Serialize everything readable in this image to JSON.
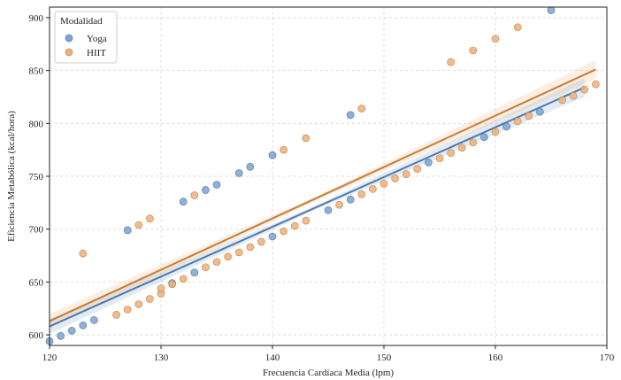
{
  "chart_data": {
    "type": "scatter",
    "title": "",
    "xlabel": "Frecuencia Cardíaca Media (lpm)",
    "ylabel": "Eficiencia Metabólica (kcal/hora)",
    "xlim": [
      120,
      170
    ],
    "ylim": [
      590,
      910
    ],
    "x_ticks": [
      "120",
      "130",
      "140",
      "150",
      "160",
      "170"
    ],
    "y_ticks": [
      "600",
      "650",
      "700",
      "750",
      "800",
      "850",
      "900"
    ],
    "grid": true,
    "legend": {
      "title": "Modalidad",
      "position": "top-left"
    },
    "series": [
      {
        "name": "Yoga",
        "color": "#7ba3cf",
        "edge": "#5b7fa8",
        "trend_color": "#4c79ad",
        "trend": [
          [
            120,
            608
          ],
          [
            168,
            834
          ]
        ],
        "points": [
          [
            120,
            594
          ],
          [
            121,
            599
          ],
          [
            122,
            604
          ],
          [
            123,
            609
          ],
          [
            124,
            614
          ],
          [
            127,
            699
          ],
          [
            131,
            649
          ],
          [
            132,
            726
          ],
          [
            133,
            659
          ],
          [
            134,
            737
          ],
          [
            135,
            742
          ],
          [
            137,
            753
          ],
          [
            138,
            759
          ],
          [
            140,
            770
          ],
          [
            140,
            693
          ],
          [
            145,
            718
          ],
          [
            147,
            808
          ],
          [
            147,
            728
          ],
          [
            154,
            763
          ],
          [
            159,
            787
          ],
          [
            161,
            797
          ],
          [
            164,
            811
          ],
          [
            165,
            907
          ]
        ]
      },
      {
        "name": "HIIT",
        "color": "#edb07a",
        "edge": "#c98b55",
        "trend_color": "#c87c34",
        "trend": [
          [
            120,
            613
          ],
          [
            169,
            851
          ]
        ],
        "points": [
          [
            123,
            677
          ],
          [
            126,
            619
          ],
          [
            127,
            624
          ],
          [
            128,
            629
          ],
          [
            129,
            634
          ],
          [
            128,
            704
          ],
          [
            129,
            710
          ],
          [
            130,
            639
          ],
          [
            130,
            644
          ],
          [
            131,
            648
          ],
          [
            132,
            653
          ],
          [
            133,
            732
          ],
          [
            134,
            664
          ],
          [
            135,
            669
          ],
          [
            136,
            674
          ],
          [
            137,
            678
          ],
          [
            138,
            683
          ],
          [
            139,
            688
          ],
          [
            141,
            698
          ],
          [
            141,
            775
          ],
          [
            142,
            703
          ],
          [
            143,
            708
          ],
          [
            143,
            786
          ],
          [
            146,
            723
          ],
          [
            148,
            814
          ],
          [
            148,
            733
          ],
          [
            149,
            738
          ],
          [
            150,
            743
          ],
          [
            151,
            748
          ],
          [
            152,
            752
          ],
          [
            153,
            757
          ],
          [
            155,
            767
          ],
          [
            156,
            772
          ],
          [
            156,
            858
          ],
          [
            157,
            777
          ],
          [
            158,
            782
          ],
          [
            158,
            869
          ],
          [
            160,
            880
          ],
          [
            160,
            792
          ],
          [
            162,
            891
          ],
          [
            162,
            802
          ],
          [
            163,
            807
          ],
          [
            166,
            822
          ],
          [
            167,
            826
          ],
          [
            168,
            832
          ],
          [
            169,
            837
          ]
        ]
      }
    ]
  }
}
